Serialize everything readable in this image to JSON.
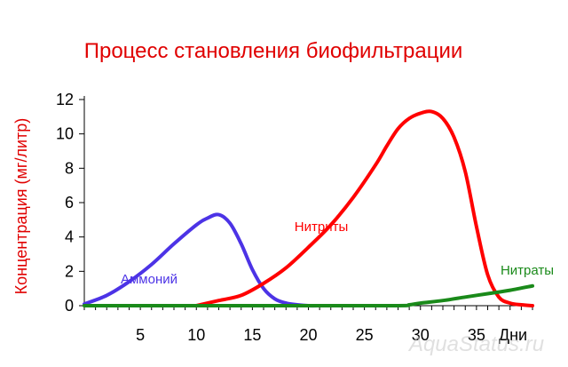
{
  "chart_data": {
    "type": "line",
    "title": "Процесс становления биофильтрации",
    "ylabel": "Концентрация (мг/литр)",
    "xlabel": "Дни",
    "xlim": [
      0,
      40
    ],
    "ylim": [
      0,
      12
    ],
    "yticks": [
      "0",
      "2",
      "4",
      "6",
      "8",
      "10",
      "12"
    ],
    "yticks_values": [
      0,
      2,
      4,
      6,
      8,
      10,
      12
    ],
    "xticks": [
      "5",
      "10",
      "15",
      "20",
      "25",
      "30",
      "35"
    ],
    "xticks_values": [
      5,
      10,
      15,
      20,
      25,
      30,
      35
    ],
    "grid": false,
    "series": [
      {
        "name": "Аммоний",
        "color": "#4c33e6",
        "x": [
          0,
          2,
          4,
          6,
          8,
          10,
          11,
          12,
          13,
          14,
          15,
          16,
          17,
          18,
          19,
          20,
          21
        ],
        "y": [
          0.1,
          0.6,
          1.4,
          2.4,
          3.6,
          4.7,
          5.1,
          5.3,
          4.8,
          3.6,
          2.1,
          1.0,
          0.4,
          0.15,
          0.05,
          0.0,
          0.0
        ]
      },
      {
        "name": "Нитриты",
        "color": "#ff0000",
        "x": [
          10,
          12,
          14,
          16,
          18,
          20,
          22,
          24,
          26,
          27,
          28,
          29,
          30,
          31,
          32,
          33,
          34,
          35,
          36,
          37,
          38,
          39,
          40
        ],
        "y": [
          0.0,
          0.3,
          0.6,
          1.3,
          2.2,
          3.4,
          4.7,
          6.3,
          8.2,
          9.3,
          10.3,
          10.9,
          11.2,
          11.3,
          10.9,
          9.8,
          7.8,
          4.6,
          1.8,
          0.5,
          0.15,
          0.05,
          0.0
        ]
      },
      {
        "name": "Нитраты",
        "color": "#1a8a1a",
        "x": [
          0,
          10,
          20,
          28,
          29,
          30,
          32,
          34,
          36,
          38,
          40
        ],
        "y": [
          0.0,
          0.0,
          0.0,
          0.0,
          0.05,
          0.15,
          0.3,
          0.5,
          0.7,
          0.9,
          1.15
        ]
      }
    ]
  },
  "watermark": "AquaStatus.ru"
}
